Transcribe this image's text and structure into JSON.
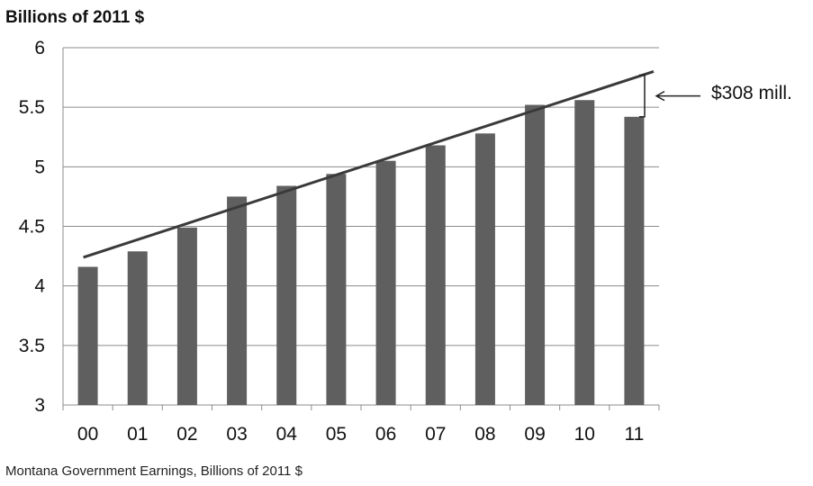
{
  "chart_data": {
    "type": "bar",
    "ylabel": "Billions of 2011 $",
    "categories": [
      "00",
      "01",
      "02",
      "03",
      "04",
      "05",
      "06",
      "07",
      "08",
      "09",
      "10",
      "11"
    ],
    "values": [
      4.16,
      4.29,
      4.49,
      4.75,
      4.84,
      4.94,
      5.05,
      5.18,
      5.28,
      5.52,
      5.56,
      5.42
    ],
    "ylim": [
      3,
      6
    ],
    "yticks": [
      "3",
      "3.5",
      "4",
      "4.5",
      "5",
      "5.5",
      "6"
    ],
    "grid": true,
    "bar_color": "#5f5f5f",
    "trend_line": {
      "start": 4.24,
      "end": 5.8,
      "color": "#3a3a3a"
    },
    "annotation": "$308 mill.",
    "caption": "Montana Government Earnings, Billions of 2011 $"
  }
}
